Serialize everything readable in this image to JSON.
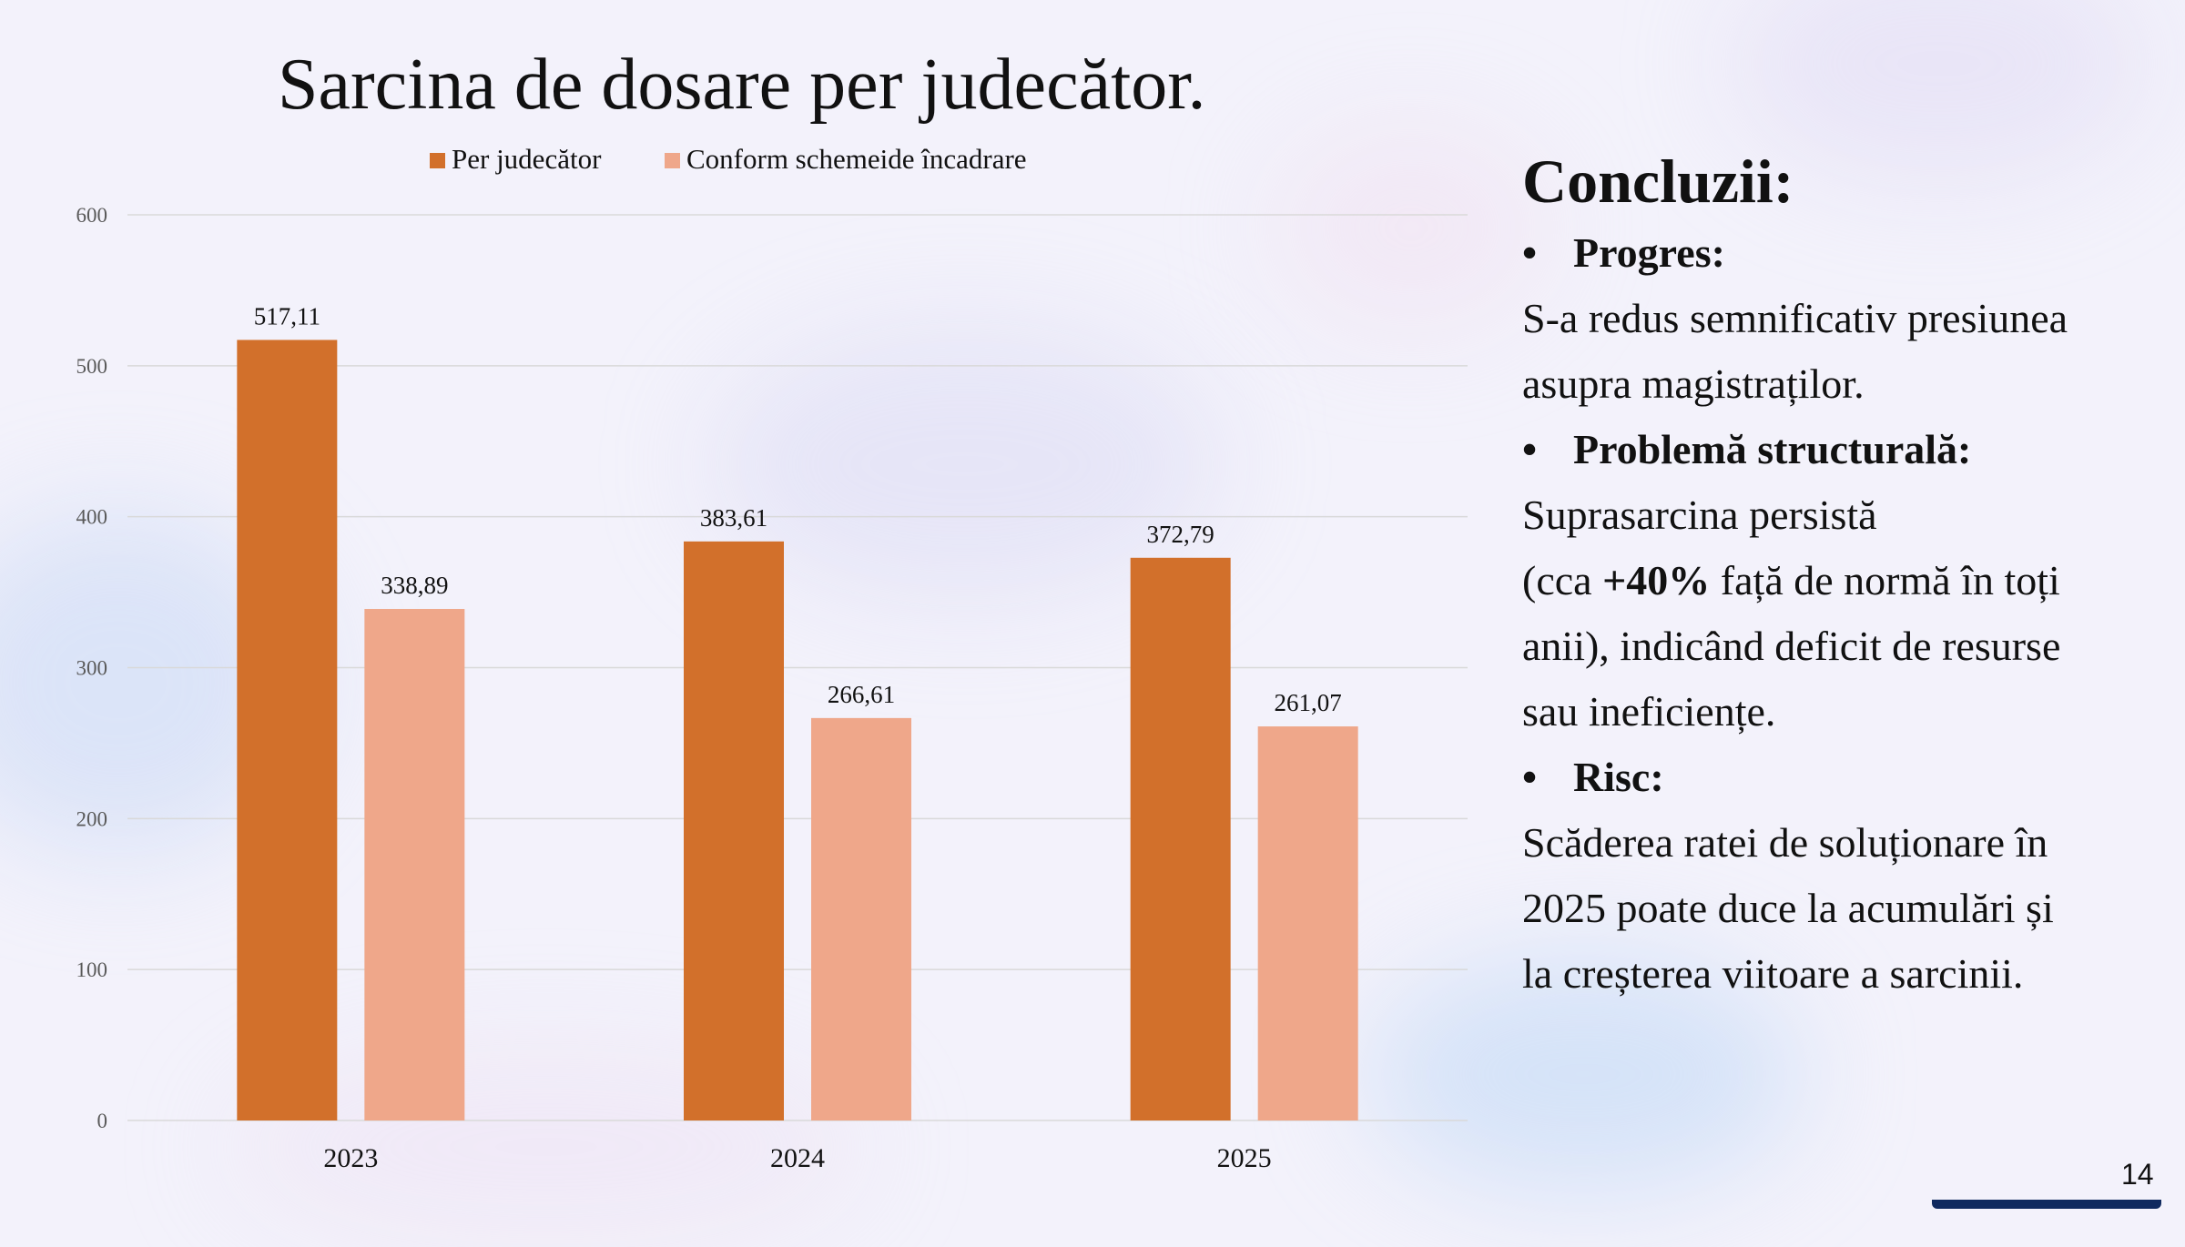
{
  "slide": {
    "title": "Sarcina de dosare per judecător.",
    "page_number": "14"
  },
  "colors": {
    "series_1": "#d2702b",
    "series_2": "#efa78a",
    "grid": "#d9d9d9",
    "axis_text": "#595959"
  },
  "chart_data": {
    "type": "bar",
    "categories": [
      "2023",
      "2024",
      "2025"
    ],
    "series": [
      {
        "name": "Per judecător",
        "values": [
          517.11,
          383.61,
          372.79
        ],
        "labels": [
          "517,11",
          "383,61",
          "372,79"
        ]
      },
      {
        "name": "Conform schemeide încadrare",
        "values": [
          338.89,
          266.61,
          261.07
        ],
        "labels": [
          "338,89",
          "266,61",
          "261,07"
        ]
      }
    ],
    "yticks": [
      0,
      100,
      200,
      300,
      400,
      500,
      600
    ],
    "ylim": [
      0,
      600
    ],
    "legend": "top-center",
    "grid": true
  },
  "conclusions": {
    "heading": "Concluzii:",
    "bullet_char": "•",
    "progress": {
      "title": "Progres:",
      "lines": [
        "S-a redus semnificativ presiunea",
        "asupra magistraților."
      ]
    },
    "structural": {
      "title": "Problemă structurală:",
      "line1": "Suprasarcina persistă",
      "line2_prefix": "(cca ",
      "line2_bold": "+40%",
      "line2_suffix": " față de normă în toți",
      "line3": "anii), indicând deficit de resurse",
      "line4": "sau ineficiențe."
    },
    "risk": {
      "title": "Risc:",
      "lines": [
        "Scăderea ratei de soluționare în",
        "2025 poate duce la acumulări și",
        "la creșterea viitoare a sarcinii."
      ]
    }
  }
}
